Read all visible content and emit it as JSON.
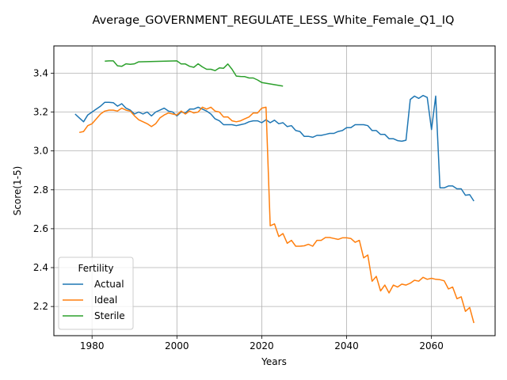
{
  "chart_data": {
    "type": "line",
    "title": "Average_GOVERNMENT_REGULATE_LESS_White_Female_Q1_IQ",
    "xlabel": "Years",
    "ylabel": "Score(1-5)",
    "xlim": [
      1971,
      2075
    ],
    "ylim": [
      2.05,
      3.54
    ],
    "xticks": [
      1980,
      2000,
      2020,
      2040,
      2060
    ],
    "yticks": [
      2.2,
      2.4,
      2.6,
      2.8,
      3.0,
      3.2,
      3.4
    ],
    "grid": true,
    "legend": {
      "title": "Fertility",
      "placement": "lower-left"
    },
    "series": [
      {
        "name": "Actual",
        "color": "#1f77b4",
        "points": [
          [
            1976,
            3.19
          ],
          [
            1977,
            3.17
          ],
          [
            1978,
            3.15
          ],
          [
            1979,
            3.185
          ],
          [
            1980,
            3.2
          ],
          [
            1981,
            3.215
          ],
          [
            1982,
            3.23
          ],
          [
            1983,
            3.25
          ],
          [
            1984,
            3.25
          ],
          [
            1985,
            3.248
          ],
          [
            1986,
            3.23
          ],
          [
            1987,
            3.243
          ],
          [
            1988,
            3.22
          ],
          [
            1989,
            3.21
          ],
          [
            1990,
            3.19
          ],
          [
            1991,
            3.2
          ],
          [
            1992,
            3.19
          ],
          [
            1993,
            3.2
          ],
          [
            1994,
            3.18
          ],
          [
            1995,
            3.2
          ],
          [
            1996,
            3.21
          ],
          [
            1997,
            3.22
          ],
          [
            1998,
            3.205
          ],
          [
            1999,
            3.2
          ],
          [
            2000,
            3.18
          ],
          [
            2001,
            3.2
          ],
          [
            2002,
            3.195
          ],
          [
            2003,
            3.215
          ],
          [
            2004,
            3.215
          ],
          [
            2005,
            3.225
          ],
          [
            2006,
            3.215
          ],
          [
            2007,
            3.205
          ],
          [
            2008,
            3.19
          ],
          [
            2009,
            3.165
          ],
          [
            2010,
            3.155
          ],
          [
            2011,
            3.135
          ],
          [
            2012,
            3.135
          ],
          [
            2013,
            3.135
          ],
          [
            2014,
            3.13
          ],
          [
            2015,
            3.135
          ],
          [
            2016,
            3.14
          ],
          [
            2017,
            3.15
          ],
          [
            2018,
            3.155
          ],
          [
            2019,
            3.155
          ],
          [
            2020,
            3.145
          ],
          [
            2021,
            3.16
          ],
          [
            2022,
            3.145
          ],
          [
            2023,
            3.158
          ],
          [
            2024,
            3.14
          ],
          [
            2025,
            3.145
          ],
          [
            2026,
            3.125
          ],
          [
            2027,
            3.13
          ],
          [
            2028,
            3.105
          ],
          [
            2029,
            3.1
          ],
          [
            2030,
            3.075
          ],
          [
            2031,
            3.075
          ],
          [
            2032,
            3.07
          ],
          [
            2033,
            3.08
          ],
          [
            2034,
            3.08
          ],
          [
            2035,
            3.085
          ],
          [
            2036,
            3.09
          ],
          [
            2037,
            3.09
          ],
          [
            2038,
            3.1
          ],
          [
            2039,
            3.105
          ],
          [
            2040,
            3.12
          ],
          [
            2041,
            3.12
          ],
          [
            2042,
            3.135
          ],
          [
            2043,
            3.135
          ],
          [
            2044,
            3.135
          ],
          [
            2045,
            3.13
          ],
          [
            2046,
            3.105
          ],
          [
            2047,
            3.105
          ],
          [
            2048,
            3.085
          ],
          [
            2049,
            3.085
          ],
          [
            2050,
            3.063
          ],
          [
            2051,
            3.063
          ],
          [
            2052,
            3.053
          ],
          [
            2053,
            3.05
          ],
          [
            2054,
            3.055
          ],
          [
            2055,
            3.265
          ],
          [
            2056,
            3.282
          ],
          [
            2057,
            3.27
          ],
          [
            2058,
            3.285
          ],
          [
            2059,
            3.275
          ],
          [
            2060,
            3.11
          ],
          [
            2061,
            3.282
          ],
          [
            2062,
            2.81
          ],
          [
            2063,
            2.81
          ],
          [
            2064,
            2.82
          ],
          [
            2065,
            2.82
          ],
          [
            2066,
            2.805
          ],
          [
            2067,
            2.805
          ],
          [
            2068,
            2.772
          ],
          [
            2069,
            2.775
          ],
          [
            2070,
            2.742
          ]
        ]
      },
      {
        "name": "Ideal",
        "color": "#ff7f0e",
        "points": [
          [
            1977,
            3.095
          ],
          [
            1978,
            3.1
          ],
          [
            1979,
            3.13
          ],
          [
            1980,
            3.14
          ],
          [
            1981,
            3.165
          ],
          [
            1982,
            3.19
          ],
          [
            1983,
            3.205
          ],
          [
            1984,
            3.21
          ],
          [
            1985,
            3.21
          ],
          [
            1986,
            3.205
          ],
          [
            1987,
            3.22
          ],
          [
            1988,
            3.21
          ],
          [
            1989,
            3.205
          ],
          [
            1990,
            3.18
          ],
          [
            1991,
            3.16
          ],
          [
            1992,
            3.15
          ],
          [
            1993,
            3.14
          ],
          [
            1994,
            3.125
          ],
          [
            1995,
            3.14
          ],
          [
            1996,
            3.17
          ],
          [
            1997,
            3.185
          ],
          [
            1998,
            3.195
          ],
          [
            1999,
            3.19
          ],
          [
            2000,
            3.185
          ],
          [
            2001,
            3.205
          ],
          [
            2002,
            3.19
          ],
          [
            2003,
            3.205
          ],
          [
            2004,
            3.195
          ],
          [
            2005,
            3.2
          ],
          [
            2006,
            3.225
          ],
          [
            2007,
            3.215
          ],
          [
            2008,
            3.225
          ],
          [
            2009,
            3.205
          ],
          [
            2010,
            3.2
          ],
          [
            2011,
            3.175
          ],
          [
            2012,
            3.175
          ],
          [
            2013,
            3.155
          ],
          [
            2014,
            3.15
          ],
          [
            2015,
            3.155
          ],
          [
            2016,
            3.165
          ],
          [
            2017,
            3.175
          ],
          [
            2018,
            3.195
          ],
          [
            2019,
            3.195
          ],
          [
            2020,
            3.22
          ],
          [
            2021,
            3.225
          ],
          [
            2022,
            2.615
          ],
          [
            2023,
            2.625
          ],
          [
            2024,
            2.56
          ],
          [
            2025,
            2.575
          ],
          [
            2026,
            2.525
          ],
          [
            2027,
            2.54
          ],
          [
            2028,
            2.51
          ],
          [
            2029,
            2.51
          ],
          [
            2030,
            2.512
          ],
          [
            2031,
            2.52
          ],
          [
            2032,
            2.51
          ],
          [
            2033,
            2.54
          ],
          [
            2034,
            2.54
          ],
          [
            2035,
            2.555
          ],
          [
            2036,
            2.555
          ],
          [
            2037,
            2.55
          ],
          [
            2038,
            2.545
          ],
          [
            2039,
            2.553
          ],
          [
            2040,
            2.553
          ],
          [
            2041,
            2.55
          ],
          [
            2042,
            2.53
          ],
          [
            2043,
            2.54
          ],
          [
            2044,
            2.45
          ],
          [
            2045,
            2.465
          ],
          [
            2046,
            2.33
          ],
          [
            2047,
            2.355
          ],
          [
            2048,
            2.28
          ],
          [
            2049,
            2.31
          ],
          [
            2050,
            2.27
          ],
          [
            2051,
            2.31
          ],
          [
            2052,
            2.3
          ],
          [
            2053,
            2.315
          ],
          [
            2054,
            2.31
          ],
          [
            2055,
            2.32
          ],
          [
            2056,
            2.335
          ],
          [
            2057,
            2.33
          ],
          [
            2058,
            2.35
          ],
          [
            2059,
            2.34
          ],
          [
            2060,
            2.345
          ],
          [
            2061,
            2.34
          ],
          [
            2062,
            2.338
          ],
          [
            2063,
            2.332
          ],
          [
            2064,
            2.29
          ],
          [
            2065,
            2.3
          ],
          [
            2066,
            2.24
          ],
          [
            2067,
            2.25
          ],
          [
            2068,
            2.175
          ],
          [
            2069,
            2.195
          ],
          [
            2070,
            2.115
          ]
        ]
      },
      {
        "name": "Sterile",
        "color": "#2ca02c",
        "points": [
          [
            1983,
            3.462
          ],
          [
            1984,
            3.463
          ],
          [
            1985,
            3.463
          ],
          [
            1986,
            3.438
          ],
          [
            1987,
            3.435
          ],
          [
            1988,
            3.448
          ],
          [
            1989,
            3.445
          ],
          [
            1990,
            3.448
          ],
          [
            1991,
            3.458
          ],
          [
            2000,
            3.463
          ],
          [
            2001,
            3.447
          ],
          [
            2002,
            3.447
          ],
          [
            2003,
            3.435
          ],
          [
            2004,
            3.43
          ],
          [
            2005,
            3.448
          ],
          [
            2006,
            3.432
          ],
          [
            2007,
            3.42
          ],
          [
            2008,
            3.42
          ],
          [
            2009,
            3.413
          ],
          [
            2010,
            3.427
          ],
          [
            2011,
            3.425
          ],
          [
            2012,
            3.447
          ],
          [
            2013,
            3.42
          ],
          [
            2014,
            3.385
          ],
          [
            2015,
            3.383
          ],
          [
            2016,
            3.382
          ],
          [
            2017,
            3.375
          ],
          [
            2018,
            3.375
          ],
          [
            2019,
            3.365
          ],
          [
            2020,
            3.352
          ],
          [
            2025,
            3.333
          ]
        ]
      }
    ]
  }
}
